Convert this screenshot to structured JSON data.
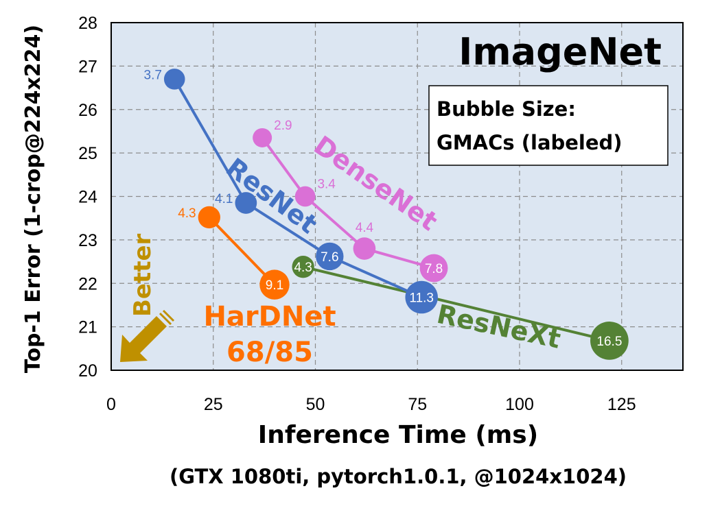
{
  "chart_data": {
    "type": "scatter",
    "title": "ImageNet",
    "xlabel": "Inference Time (ms)",
    "x_sublabel": "(GTX 1080ti, pytorch1.0.1, @1024x1024)",
    "ylabel": "Top-1 Error (1-crop@224x224)",
    "xlim": [
      0,
      140
    ],
    "ylim": [
      20,
      28
    ],
    "x_ticks": [
      0,
      25,
      50,
      75,
      100,
      125
    ],
    "y_ticks": [
      20,
      21,
      22,
      23,
      24,
      25,
      26,
      27,
      28
    ],
    "grid": true,
    "legend_box": {
      "line1": "Bubble Size:",
      "line2": "GMACs (labeled)"
    },
    "better_label": "Better",
    "series": [
      {
        "name": "ResNet",
        "color": "#4472C4",
        "points": [
          {
            "x": 15.5,
            "y": 26.7,
            "gmacs": 3.7
          },
          {
            "x": 33.0,
            "y": 23.85,
            "gmacs": 4.1
          },
          {
            "x": 53.5,
            "y": 22.62,
            "gmacs": 7.6
          },
          {
            "x": 76.0,
            "y": 21.68,
            "gmacs": 11.3
          }
        ]
      },
      {
        "name": "DenseNet",
        "color": "#DA70D6",
        "points": [
          {
            "x": 37.0,
            "y": 25.35,
            "gmacs": 2.9
          },
          {
            "x": 47.5,
            "y": 24.0,
            "gmacs": 3.4
          },
          {
            "x": 62.0,
            "y": 22.8,
            "gmacs": 4.4
          },
          {
            "x": 79.0,
            "y": 22.35,
            "gmacs": 7.8
          }
        ]
      },
      {
        "name": "HarDNet\n68/85",
        "color": "#FF6F00",
        "points": [
          {
            "x": 24.0,
            "y": 23.52,
            "gmacs": 4.3
          },
          {
            "x": 40.0,
            "y": 21.97,
            "gmacs": 9.1
          }
        ]
      },
      {
        "name": "ResNeXt",
        "color": "#548235",
        "points": [
          {
            "x": 47.0,
            "y": 22.38,
            "gmacs": 4.3
          },
          {
            "x": 122.0,
            "y": 20.68,
            "gmacs": 16.5
          }
        ]
      }
    ]
  }
}
